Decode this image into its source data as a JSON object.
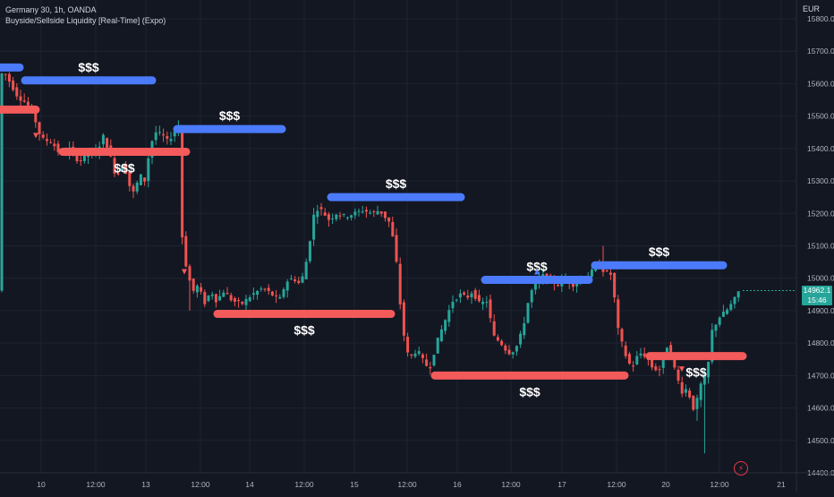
{
  "header": {
    "symbol_line": "Germany 30, 1h, OANDA",
    "indicator_line": "Buyside/Sellside Liquidity [Real-Time] (Expo)",
    "currency": "EUR"
  },
  "price_badge": {
    "price": "14962.1",
    "countdown": "15:46"
  },
  "colors": {
    "background": "#131722",
    "up": "#26a69a",
    "down": "#ef5350",
    "buyside": "#4b7bfa",
    "sellside": "#f35a5a",
    "text": "#d1d4dc",
    "grid": "#1e2331"
  },
  "chart_data": {
    "type": "candlestick",
    "ylim": [
      14380,
      15840
    ],
    "y_ticks": [
      15800.0,
      15700.0,
      15600.0,
      15500.0,
      15400.0,
      15300.0,
      15200.0,
      15100.0,
      15000.0,
      14900.0,
      14800.0,
      14700.0,
      14600.0,
      14500.0,
      14400.0
    ],
    "x_tick_labels": [
      "10",
      "12:00",
      "13",
      "12:00",
      "14",
      "12:00",
      "15",
      "12:00",
      "16",
      "12:00",
      "17",
      "12:00",
      "20",
      "12:00",
      "21"
    ],
    "price_path": [
      [
        0,
        15610
      ],
      [
        6,
        15640
      ],
      [
        14,
        15600
      ],
      [
        22,
        15560
      ],
      [
        32,
        15540
      ],
      [
        40,
        15500
      ],
      [
        48,
        15430
      ],
      [
        60,
        15420
      ],
      [
        70,
        15380
      ],
      [
        80,
        15400
      ],
      [
        90,
        15360
      ],
      [
        100,
        15380
      ],
      [
        110,
        15390
      ],
      [
        118,
        15440
      ],
      [
        124,
        15390
      ],
      [
        132,
        15310
      ],
      [
        140,
        15360
      ],
      [
        146,
        15290
      ],
      [
        152,
        15260
      ],
      [
        158,
        15320
      ],
      [
        164,
        15300
      ],
      [
        170,
        15410
      ],
      [
        176,
        15450
      ],
      [
        184,
        15440
      ],
      [
        190,
        15420
      ],
      [
        196,
        15450
      ],
      [
        202,
        15470
      ],
      [
        206,
        15100
      ],
      [
        212,
        15010
      ],
      [
        218,
        14960
      ],
      [
        224,
        14980
      ],
      [
        230,
        14920
      ],
      [
        238,
        14960
      ],
      [
        244,
        14930
      ],
      [
        252,
        14960
      ],
      [
        262,
        14930
      ],
      [
        272,
        14920
      ],
      [
        284,
        14950
      ],
      [
        296,
        14970
      ],
      [
        306,
        14950
      ],
      [
        314,
        14930
      ],
      [
        322,
        14990
      ],
      [
        330,
        15000
      ],
      [
        338,
        14980
      ],
      [
        346,
        15070
      ],
      [
        352,
        15190
      ],
      [
        358,
        15220
      ],
      [
        364,
        15200
      ],
      [
        370,
        15180
      ],
      [
        378,
        15200
      ],
      [
        388,
        15190
      ],
      [
        398,
        15200
      ],
      [
        408,
        15210
      ],
      [
        418,
        15200
      ],
      [
        426,
        15210
      ],
      [
        432,
        15190
      ],
      [
        438,
        15170
      ],
      [
        444,
        15080
      ],
      [
        450,
        14900
      ],
      [
        456,
        14770
      ],
      [
        462,
        14760
      ],
      [
        468,
        14780
      ],
      [
        476,
        14740
      ],
      [
        482,
        14720
      ],
      [
        490,
        14800
      ],
      [
        498,
        14860
      ],
      [
        508,
        14930
      ],
      [
        516,
        14950
      ],
      [
        524,
        14940
      ],
      [
        530,
        14960
      ],
      [
        538,
        14920
      ],
      [
        546,
        14930
      ],
      [
        554,
        14820
      ],
      [
        562,
        14800
      ],
      [
        570,
        14770
      ],
      [
        578,
        14780
      ],
      [
        586,
        14840
      ],
      [
        594,
        14950
      ],
      [
        602,
        14990
      ],
      [
        610,
        15010
      ],
      [
        618,
        14990
      ],
      [
        626,
        14980
      ],
      [
        634,
        15000
      ],
      [
        642,
        14980
      ],
      [
        650,
        14990
      ],
      [
        660,
        15010
      ],
      [
        670,
        15040
      ],
      [
        678,
        15020
      ],
      [
        686,
        15010
      ],
      [
        692,
        14850
      ],
      [
        700,
        14770
      ],
      [
        708,
        14720
      ],
      [
        716,
        14770
      ],
      [
        724,
        14760
      ],
      [
        732,
        14720
      ],
      [
        740,
        14720
      ],
      [
        746,
        14800
      ],
      [
        752,
        14760
      ],
      [
        758,
        14700
      ],
      [
        764,
        14650
      ],
      [
        770,
        14660
      ],
      [
        778,
        14590
      ],
      [
        786,
        14680
      ],
      [
        792,
        14700
      ],
      [
        798,
        14840
      ],
      [
        806,
        14880
      ],
      [
        814,
        14900
      ],
      [
        822,
        14930
      ],
      [
        828,
        14962
      ]
    ],
    "buyside_levels": [
      {
        "x_start": 0,
        "x_end": 22,
        "price": 15650,
        "label": ""
      },
      {
        "x_start": 28,
        "x_end": 170,
        "price": 15610,
        "label": "$$$"
      },
      {
        "x_start": 198,
        "x_end": 315,
        "price": 15460,
        "label": "$$$"
      },
      {
        "x_start": 370,
        "x_end": 515,
        "price": 15250,
        "label": "$$$"
      },
      {
        "x_start": 542,
        "x_end": 658,
        "price": 14995,
        "label": "$$$"
      },
      {
        "x_start": 665,
        "x_end": 808,
        "price": 15040,
        "label": "$$$"
      }
    ],
    "sellside_levels": [
      {
        "x_start": 0,
        "x_end": 40,
        "price": 15520,
        "label": ""
      },
      {
        "x_start": 70,
        "x_end": 208,
        "price": 15390,
        "label": "$$$"
      },
      {
        "x_start": 243,
        "x_end": 437,
        "price": 14890,
        "label": "$$$"
      },
      {
        "x_start": 486,
        "x_end": 698,
        "price": 14700,
        "label": "$$$"
      },
      {
        "x_start": 726,
        "x_end": 830,
        "price": 14760,
        "label": "$$$"
      }
    ]
  }
}
